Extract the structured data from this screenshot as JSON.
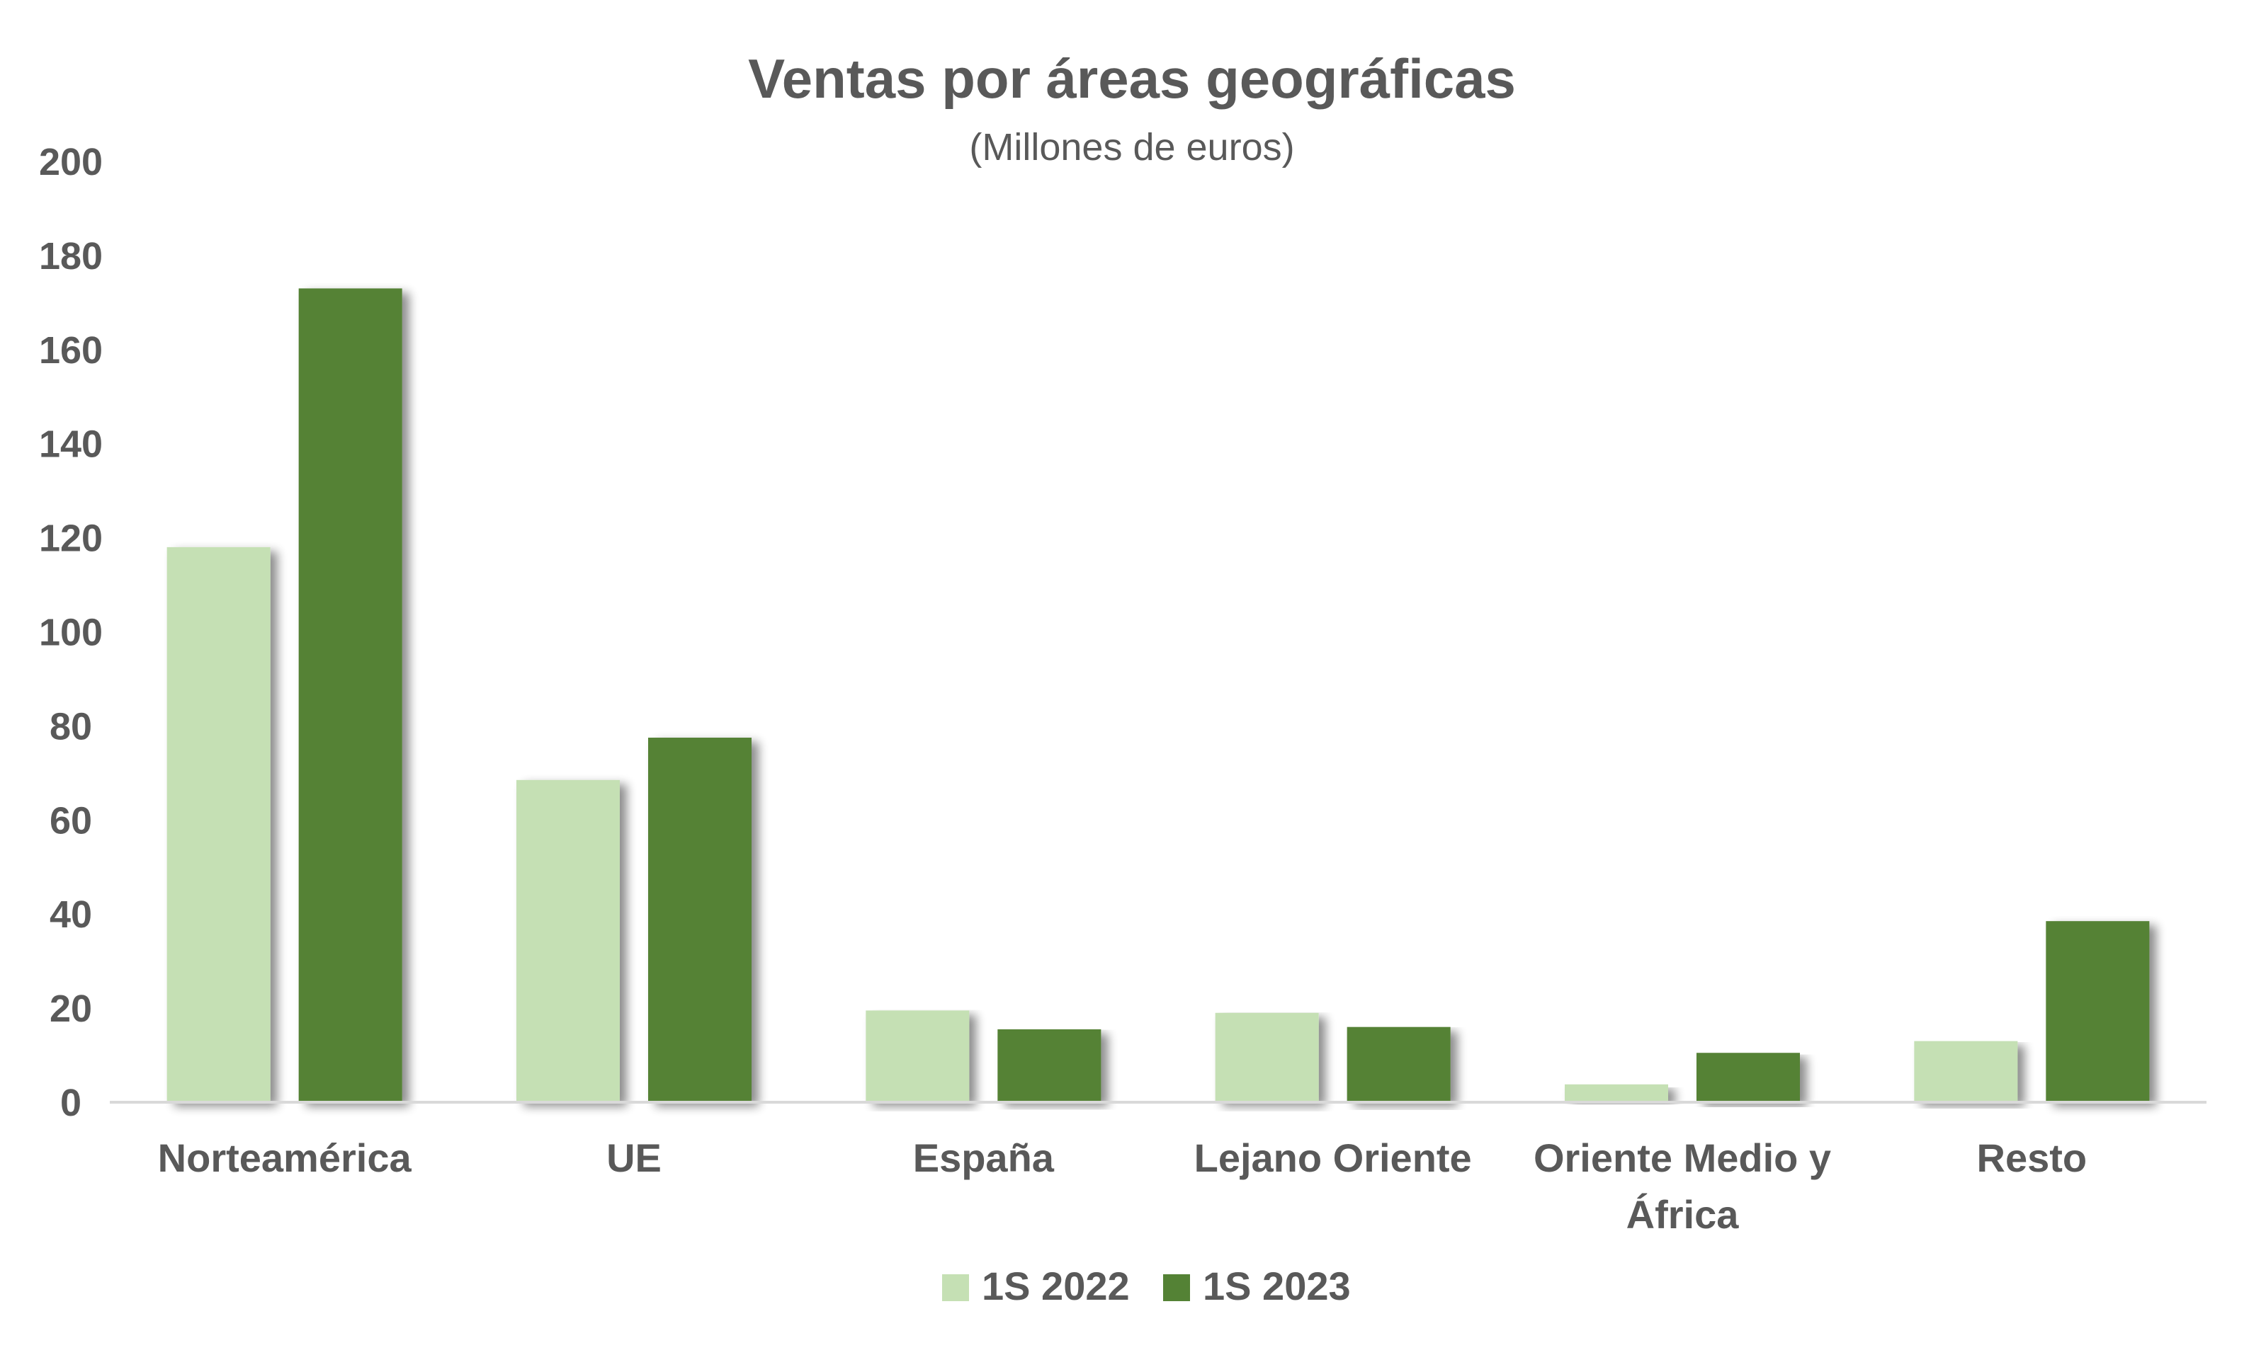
{
  "chart_data": {
    "type": "bar",
    "title": "Ventas por áreas geográficas",
    "subtitle": "(Millones de euros)",
    "xlabel": "",
    "ylabel": "",
    "ylim": [
      0,
      200
    ],
    "yticks": [
      0,
      20,
      40,
      60,
      80,
      100,
      120,
      140,
      160,
      180,
      200
    ],
    "grid": false,
    "legend": "bottom-center",
    "categories": [
      [
        "Norteamérica"
      ],
      [
        "UE"
      ],
      [
        "España"
      ],
      [
        "Lejano Oriente"
      ],
      [
        "Oriente Medio y",
        "África"
      ],
      [
        "Resto"
      ]
    ],
    "series": [
      {
        "name": "1S 2022",
        "color": "#c5e0b4",
        "values": [
          118,
          68.5,
          19.5,
          19,
          3.8,
          13
        ]
      },
      {
        "name": "1S 2023",
        "color": "#548235",
        "values": [
          173,
          77.5,
          15.5,
          16,
          10.5,
          38.5
        ]
      }
    ],
    "colors": {
      "text": "#595959",
      "axis": "#d9d9d9"
    }
  }
}
